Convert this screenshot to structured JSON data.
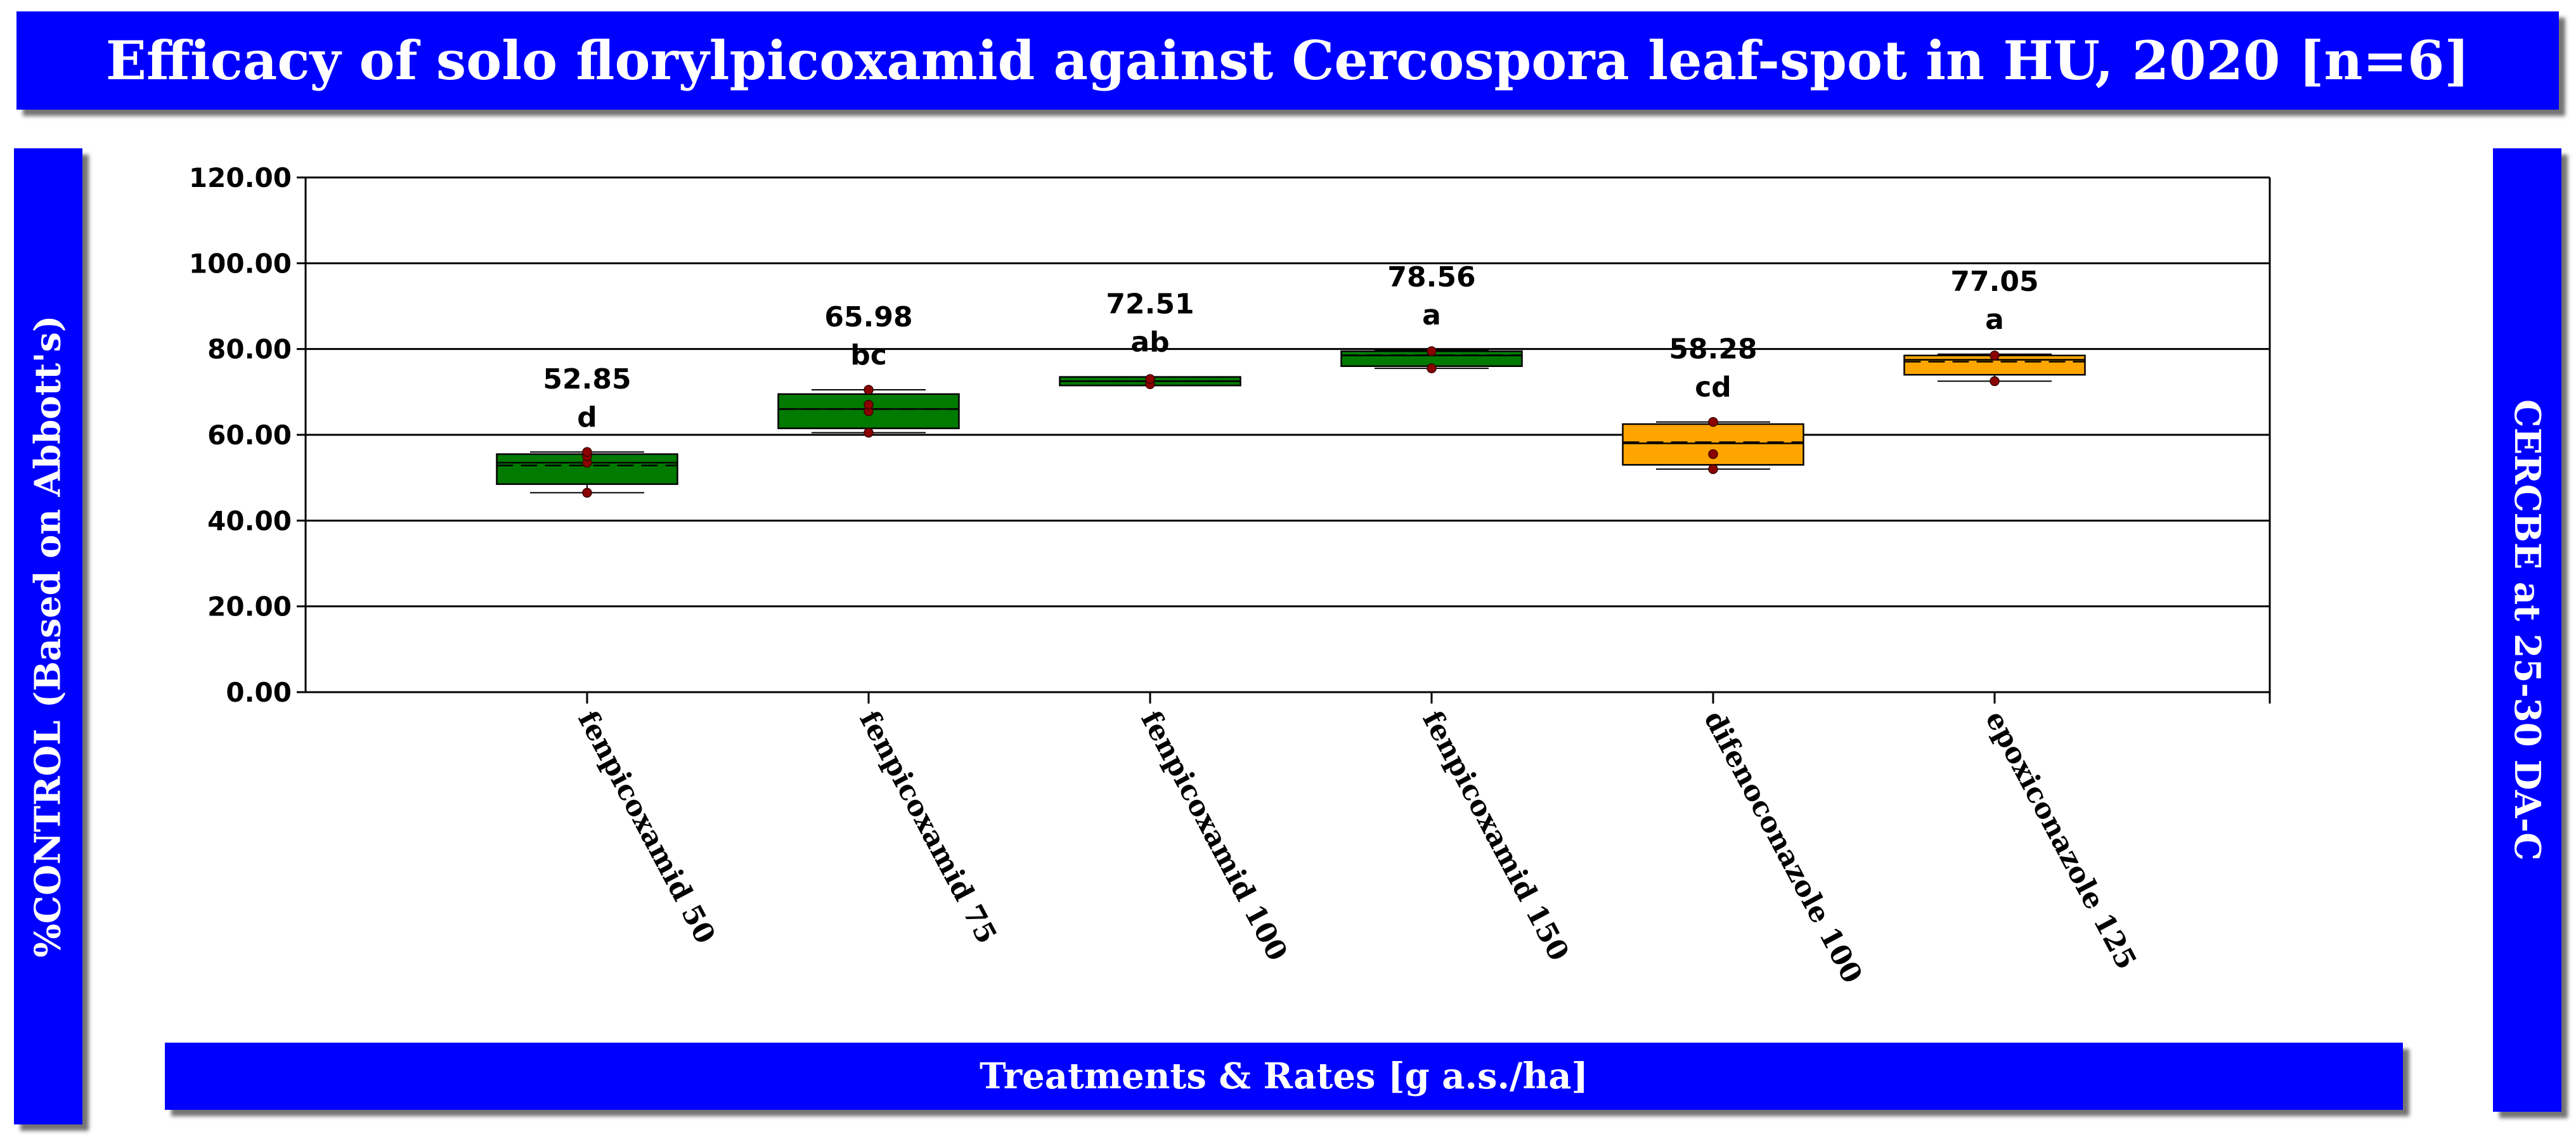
{
  "title": "Efficacy of solo florylpicoxamid against Cercospora leaf-spot in HU, 2020 [n=6]",
  "xlabel_banner": "Treatments & Rates [g a.s./ha]",
  "ylabel_banner": "%CONTROL (Based on Abbott's)",
  "right_banner": "CERCBE at 25-30 DA-C",
  "colors": {
    "banner": "#0000ff",
    "green": "#007a00",
    "orange": "#ffa500",
    "point": "#8b0000"
  },
  "chart_data": {
    "type": "box",
    "title": "Efficacy of solo florylpicoxamid against Cercospora leaf-spot in HU, 2020 [n=6]",
    "xlabel": "Treatments & Rates [g a.s./ha]",
    "ylabel": "%CONTROL (Based on Abbott's)",
    "ylim": [
      0,
      120
    ],
    "yticks": [
      0,
      20,
      40,
      60,
      80,
      100,
      120
    ],
    "ytick_labels": [
      "0.00",
      "20.00",
      "40.00",
      "60.00",
      "80.00",
      "100.00",
      "120.00"
    ],
    "grid": true,
    "categories": [
      "fenpicoxamid 50",
      "fenpicoxamid 75",
      "fenpicoxamid 100",
      "fenpicoxamid 150",
      "difenoconazole 100",
      "epoxiconazole 125"
    ],
    "boxes": [
      {
        "name": "fenpicoxamid 50",
        "group": "fenpicoxamid",
        "mean": 52.85,
        "mean_label": "52.85",
        "letter": "d",
        "min": 46.5,
        "q1": 48.5,
        "median": 53.5,
        "q3": 55.5,
        "max": 56.0,
        "points": [
          46.5,
          53.5,
          55.0,
          56.0
        ]
      },
      {
        "name": "fenpicoxamid 75",
        "group": "fenpicoxamid",
        "mean": 65.98,
        "mean_label": "65.98",
        "letter": "bc",
        "min": 60.5,
        "q1": 61.5,
        "median": 66.0,
        "q3": 69.5,
        "max": 70.5,
        "points": [
          60.5,
          65.5,
          67.0,
          70.5
        ]
      },
      {
        "name": "fenpicoxamid 100",
        "group": "fenpicoxamid",
        "mean": 72.51,
        "mean_label": "72.51",
        "letter": "ab",
        "min": 71.5,
        "q1": 71.5,
        "median": 72.5,
        "q3": 73.5,
        "max": 73.5,
        "points": [
          71.8,
          73.0
        ]
      },
      {
        "name": "fenpicoxamid 150",
        "group": "fenpicoxamid",
        "mean": 78.56,
        "mean_label": "78.56",
        "letter": "a",
        "min": 75.5,
        "q1": 76.0,
        "median": 78.5,
        "q3": 79.5,
        "max": 79.8,
        "points": [
          75.5,
          79.5
        ]
      },
      {
        "name": "difenoconazole 100",
        "group": "standard",
        "mean": 58.28,
        "mean_label": "58.28",
        "letter": "cd",
        "min": 52.0,
        "q1": 53.0,
        "median": 58.0,
        "q3": 62.5,
        "max": 63.0,
        "points": [
          52.0,
          55.5,
          63.0
        ]
      },
      {
        "name": "epoxiconazole 125",
        "group": "standard",
        "mean": 77.05,
        "mean_label": "77.05",
        "letter": "a",
        "min": 72.5,
        "q1": 74.0,
        "median": 77.5,
        "q3": 78.5,
        "max": 78.8,
        "points": [
          72.5,
          78.5
        ]
      }
    ]
  }
}
